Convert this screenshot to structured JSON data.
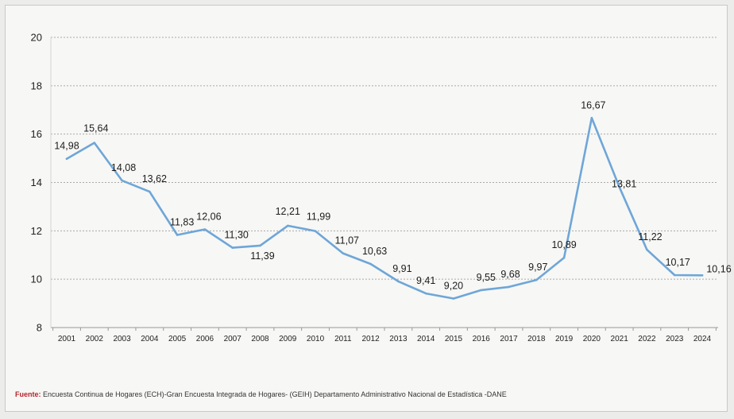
{
  "chart_data": {
    "type": "line",
    "title": "",
    "xlabel": "",
    "ylabel": "",
    "ylim": [
      8,
      20
    ],
    "yticks": [
      "8",
      "10",
      "12",
      "14",
      "16",
      "18",
      "20"
    ],
    "grid": true,
    "legend": "none",
    "x": [
      "2001",
      "2002",
      "2003",
      "2004",
      "2005",
      "2006",
      "2007",
      "2008",
      "2009",
      "2010",
      "2011",
      "2012",
      "2013",
      "2014",
      "2015",
      "2016",
      "2017",
      "2018",
      "2019",
      "2020",
      "2021",
      "2022",
      "2023",
      "2024"
    ],
    "series": [
      {
        "values": [
          14.98,
          15.64,
          14.08,
          13.62,
          11.83,
          12.06,
          11.3,
          11.39,
          12.21,
          11.99,
          11.07,
          10.63,
          9.91,
          9.41,
          9.2,
          9.55,
          9.68,
          9.97,
          10.89,
          16.67,
          13.81,
          11.22,
          10.17,
          10.16
        ],
        "labels": [
          "14,98",
          "15,64",
          "14,08",
          "13,62",
          "11,83",
          "12,06",
          "11,30",
          "11,39",
          "12,21",
          "11,99",
          "11,07",
          "10,63",
          "9,91",
          "9,41",
          "9,20",
          "9,55",
          "9,68",
          "9,97",
          "10,89",
          "16,67",
          "13,81",
          "11,22",
          "10,17",
          "10,16"
        ],
        "color": "#6ea6d8"
      }
    ]
  },
  "source": {
    "label": "Fuente:",
    "text": " Encuesta Continua de Hogares (ECH)-Gran Encuesta Integrada de Hogares- (GEIH) Departamento Administrativo Nacional de Estadística -DANE"
  },
  "colors": {
    "line": "#6ea6d8",
    "grid": "#a9a9a9",
    "axis": "#9a9a9a"
  }
}
